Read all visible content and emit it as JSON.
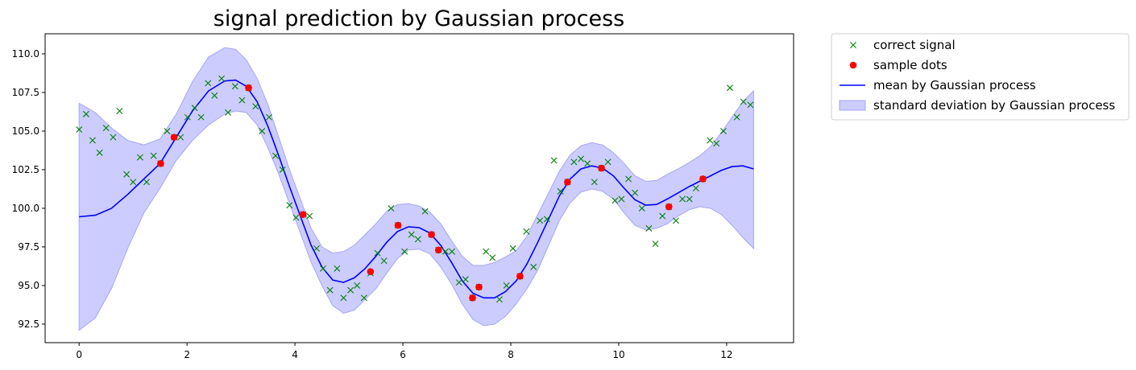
{
  "chart_data": {
    "type": "line",
    "title": "signal prediction by Gaussian process",
    "xlabel": "",
    "ylabel": "",
    "xlim": [
      -0.63,
      13.24
    ],
    "ylim": [
      91.3,
      111.3
    ],
    "x_ticks": [
      0,
      2,
      4,
      6,
      8,
      10,
      12
    ],
    "x_tick_labels": [
      "0",
      "2",
      "4",
      "6",
      "8",
      "10",
      "12"
    ],
    "y_ticks": [
      92.5,
      95.0,
      97.5,
      100.0,
      102.5,
      105.0,
      107.5,
      110.0
    ],
    "y_tick_labels": [
      "92.5",
      "95.0",
      "97.5",
      "100.0",
      "102.5",
      "105.0",
      "107.5",
      "110.0"
    ],
    "grid": false,
    "legend_position": "outside-top-right",
    "legend": [
      "correct signal",
      "sample dots",
      "mean by Gaussian process",
      "standard deviation by Gaussian process"
    ],
    "colors": {
      "correct_signal": "#008000",
      "sample_dots": "#ff0000",
      "mean": "#0000ff",
      "band_fill": "#ccccff",
      "band_edge": "#a6a6f5"
    },
    "series": [
      {
        "name": "correct signal",
        "kind": "scatter-x",
        "points": [
          [
            0.0,
            105.1
          ],
          [
            0.13,
            106.1
          ],
          [
            0.25,
            104.4
          ],
          [
            0.38,
            103.6
          ],
          [
            0.5,
            105.2
          ],
          [
            0.63,
            104.6
          ],
          [
            0.75,
            106.3
          ],
          [
            0.88,
            102.2
          ],
          [
            1.0,
            101.7
          ],
          [
            1.13,
            103.3
          ],
          [
            1.25,
            101.7
          ],
          [
            1.38,
            103.4
          ],
          [
            1.51,
            102.9
          ],
          [
            1.63,
            105.0
          ],
          [
            1.76,
            104.6
          ],
          [
            1.88,
            104.6
          ],
          [
            2.01,
            105.9
          ],
          [
            2.14,
            106.5
          ],
          [
            2.26,
            105.9
          ],
          [
            2.39,
            108.1
          ],
          [
            2.51,
            107.3
          ],
          [
            2.64,
            108.4
          ],
          [
            2.76,
            106.2
          ],
          [
            2.89,
            107.9
          ],
          [
            3.02,
            107.0
          ],
          [
            3.14,
            107.8
          ],
          [
            3.27,
            106.6
          ],
          [
            3.39,
            105.0
          ],
          [
            3.52,
            105.9
          ],
          [
            3.64,
            103.4
          ],
          [
            3.77,
            102.5
          ],
          [
            3.9,
            100.2
          ],
          [
            4.02,
            99.4
          ],
          [
            4.15,
            99.6
          ],
          [
            4.27,
            99.5
          ],
          [
            4.4,
            97.4
          ],
          [
            4.52,
            96.1
          ],
          [
            4.65,
            94.7
          ],
          [
            4.78,
            96.1
          ],
          [
            4.9,
            94.2
          ],
          [
            5.03,
            94.7
          ],
          [
            5.15,
            95.0
          ],
          [
            5.28,
            94.2
          ],
          [
            5.4,
            95.8
          ],
          [
            5.53,
            97.1
          ],
          [
            5.65,
            96.6
          ],
          [
            5.78,
            100.0
          ],
          [
            5.91,
            98.9
          ],
          [
            6.03,
            97.2
          ],
          [
            6.16,
            98.3
          ],
          [
            6.28,
            98.0
          ],
          [
            6.41,
            99.8
          ],
          [
            6.53,
            98.3
          ],
          [
            6.66,
            97.3
          ],
          [
            6.79,
            97.2
          ],
          [
            6.91,
            97.2
          ],
          [
            7.04,
            95.2
          ],
          [
            7.16,
            95.4
          ],
          [
            7.29,
            94.2
          ],
          [
            7.41,
            94.9
          ],
          [
            7.54,
            97.2
          ],
          [
            7.66,
            96.8
          ],
          [
            7.79,
            94.1
          ],
          [
            7.92,
            95.0
          ],
          [
            8.04,
            97.4
          ],
          [
            8.17,
            95.6
          ],
          [
            8.29,
            98.5
          ],
          [
            8.42,
            96.2
          ],
          [
            8.54,
            99.2
          ],
          [
            8.67,
            99.3
          ],
          [
            8.8,
            103.1
          ],
          [
            8.92,
            101.1
          ],
          [
            9.05,
            101.7
          ],
          [
            9.17,
            103.0
          ],
          [
            9.3,
            103.2
          ],
          [
            9.42,
            102.9
          ],
          [
            9.55,
            101.7
          ],
          [
            9.68,
            102.6
          ],
          [
            9.8,
            103.0
          ],
          [
            9.93,
            100.5
          ],
          [
            10.05,
            100.6
          ],
          [
            10.18,
            101.9
          ],
          [
            10.3,
            101.0
          ],
          [
            10.43,
            100.0
          ],
          [
            10.56,
            98.7
          ],
          [
            10.68,
            97.7
          ],
          [
            10.81,
            99.5
          ],
          [
            10.93,
            100.1
          ],
          [
            11.06,
            99.2
          ],
          [
            11.18,
            100.6
          ],
          [
            11.31,
            100.6
          ],
          [
            11.43,
            101.3
          ],
          [
            11.56,
            101.9
          ],
          [
            11.69,
            104.4
          ],
          [
            11.81,
            104.2
          ],
          [
            11.94,
            105.0
          ],
          [
            12.06,
            107.8
          ],
          [
            12.19,
            105.9
          ],
          [
            12.31,
            106.9
          ],
          [
            12.44,
            106.7
          ]
        ]
      },
      {
        "name": "sample dots",
        "kind": "scatter-dot",
        "points": [
          [
            1.51,
            102.9
          ],
          [
            1.76,
            104.6
          ],
          [
            3.14,
            107.8
          ],
          [
            4.15,
            99.6
          ],
          [
            5.4,
            95.9
          ],
          [
            5.91,
            98.9
          ],
          [
            6.53,
            98.3
          ],
          [
            6.66,
            97.3
          ],
          [
            7.29,
            94.2
          ],
          [
            7.41,
            94.9
          ],
          [
            8.17,
            95.6
          ],
          [
            9.05,
            101.7
          ],
          [
            9.68,
            102.6
          ],
          [
            10.93,
            100.1
          ],
          [
            11.56,
            101.9
          ]
        ]
      },
      {
        "name": "mean by Gaussian process",
        "kind": "line",
        "points": [
          [
            0.0,
            99.45
          ],
          [
            0.3,
            99.55
          ],
          [
            0.6,
            100.0
          ],
          [
            0.9,
            100.9
          ],
          [
            1.2,
            101.9
          ],
          [
            1.5,
            102.9
          ],
          [
            1.8,
            104.6
          ],
          [
            2.1,
            106.3
          ],
          [
            2.4,
            107.6
          ],
          [
            2.7,
            108.25
          ],
          [
            2.9,
            108.3
          ],
          [
            3.1,
            107.9
          ],
          [
            3.3,
            106.9
          ],
          [
            3.5,
            105.3
          ],
          [
            3.7,
            103.4
          ],
          [
            3.9,
            101.4
          ],
          [
            4.1,
            99.5
          ],
          [
            4.3,
            97.6
          ],
          [
            4.5,
            96.2
          ],
          [
            4.7,
            95.35
          ],
          [
            4.9,
            95.2
          ],
          [
            5.1,
            95.5
          ],
          [
            5.3,
            96.1
          ],
          [
            5.5,
            96.9
          ],
          [
            5.7,
            97.8
          ],
          [
            5.9,
            98.5
          ],
          [
            6.1,
            98.8
          ],
          [
            6.3,
            98.75
          ],
          [
            6.5,
            98.4
          ],
          [
            6.7,
            97.6
          ],
          [
            6.9,
            96.5
          ],
          [
            7.1,
            95.3
          ],
          [
            7.3,
            94.5
          ],
          [
            7.5,
            94.2
          ],
          [
            7.7,
            94.2
          ],
          [
            7.9,
            94.6
          ],
          [
            8.1,
            95.3
          ],
          [
            8.3,
            96.4
          ],
          [
            8.5,
            97.8
          ],
          [
            8.7,
            99.3
          ],
          [
            8.9,
            100.8
          ],
          [
            9.1,
            101.9
          ],
          [
            9.3,
            102.55
          ],
          [
            9.5,
            102.75
          ],
          [
            9.7,
            102.6
          ],
          [
            9.9,
            102.1
          ],
          [
            10.1,
            101.3
          ],
          [
            10.3,
            100.55
          ],
          [
            10.5,
            100.2
          ],
          [
            10.7,
            100.25
          ],
          [
            10.9,
            100.6
          ],
          [
            11.1,
            101.0
          ],
          [
            11.3,
            101.4
          ],
          [
            11.5,
            101.75
          ],
          [
            11.7,
            102.1
          ],
          [
            11.9,
            102.45
          ],
          [
            12.1,
            102.7
          ],
          [
            12.3,
            102.75
          ],
          [
            12.5,
            102.55
          ]
        ]
      },
      {
        "name": "standard deviation by Gaussian process",
        "kind": "band",
        "x": [
          0.0,
          0.3,
          0.6,
          0.9,
          1.2,
          1.5,
          1.8,
          2.1,
          2.4,
          2.7,
          2.9,
          3.1,
          3.3,
          3.5,
          3.7,
          3.9,
          4.1,
          4.3,
          4.5,
          4.7,
          4.9,
          5.1,
          5.3,
          5.5,
          5.7,
          5.9,
          6.1,
          6.3,
          6.5,
          6.7,
          6.9,
          7.1,
          7.3,
          7.5,
          7.7,
          7.9,
          8.1,
          8.3,
          8.5,
          8.7,
          8.9,
          9.1,
          9.3,
          9.5,
          9.7,
          9.9,
          10.1,
          10.3,
          10.5,
          10.7,
          10.9,
          11.1,
          11.3,
          11.5,
          11.7,
          11.9,
          12.1,
          12.3,
          12.5
        ],
        "upper": [
          106.8,
          106.2,
          105.2,
          104.4,
          104.1,
          104.5,
          106.1,
          108.2,
          109.8,
          110.4,
          110.3,
          109.6,
          108.4,
          106.7,
          104.6,
          102.5,
          100.6,
          98.7,
          97.5,
          97.1,
          97.2,
          97.6,
          98.3,
          99.0,
          99.8,
          100.25,
          100.3,
          100.15,
          99.75,
          99.0,
          97.9,
          96.9,
          96.3,
          96.3,
          96.5,
          96.85,
          97.25,
          98.2,
          99.6,
          101.0,
          102.4,
          103.45,
          104.05,
          104.25,
          104.1,
          103.6,
          102.9,
          102.1,
          101.75,
          101.8,
          102.2,
          102.55,
          102.95,
          103.4,
          104.0,
          104.9,
          105.9,
          106.9,
          107.6
        ],
        "lower": [
          92.1,
          92.9,
          94.8,
          97.4,
          99.7,
          101.3,
          103.1,
          104.4,
          105.4,
          106.1,
          106.3,
          106.2,
          105.4,
          103.9,
          102.2,
          100.3,
          98.4,
          96.5,
          95.0,
          93.7,
          93.2,
          93.4,
          94.1,
          94.8,
          95.8,
          96.75,
          97.3,
          97.35,
          97.05,
          96.2,
          95.1,
          93.8,
          92.8,
          92.4,
          92.5,
          93.0,
          93.8,
          94.8,
          96.0,
          97.6,
          99.2,
          100.35,
          101.05,
          101.25,
          101.1,
          100.6,
          99.7,
          98.9,
          98.6,
          98.7,
          99.0,
          99.5,
          99.9,
          100.1,
          100.0,
          99.6,
          98.9,
          98.1,
          97.4
        ]
      }
    ]
  }
}
